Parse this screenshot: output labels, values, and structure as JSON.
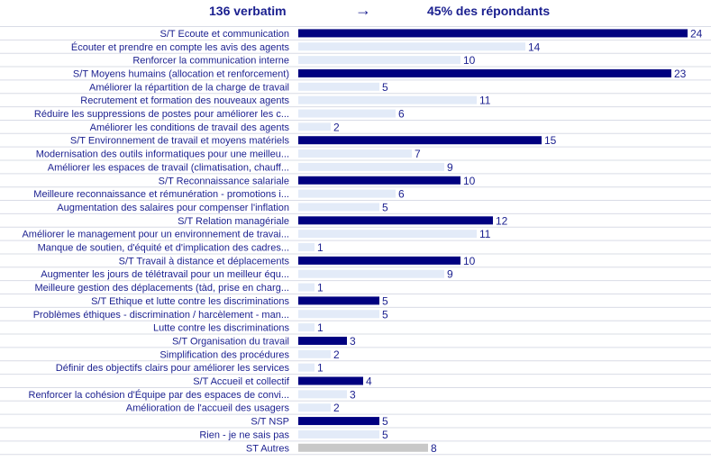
{
  "header": {
    "verbatim": "136 verbatim",
    "arrow": "→",
    "respondents": "45% des répondants"
  },
  "colors": {
    "theme": "#000080",
    "sub": "#e3ebf8",
    "other": "#c8c8c8",
    "text": "#1a1f8f",
    "gridline": "#d9dce6"
  },
  "chart_data": {
    "type": "bar",
    "orientation": "horizontal",
    "xlim": [
      0,
      24
    ],
    "grid": true,
    "categories": [
      {
        "label": "S/T Ecoute et communication",
        "value": 24,
        "kind": "theme"
      },
      {
        "label": "Écouter et prendre en compte les avis des agents",
        "value": 14,
        "kind": "sub"
      },
      {
        "label": "Renforcer la communication interne",
        "value": 10,
        "kind": "sub"
      },
      {
        "label": "S/T Moyens humains (allocation et renforcement)",
        "value": 23,
        "kind": "theme"
      },
      {
        "label": "Améliorer la répartition de la charge de travail",
        "value": 5,
        "kind": "sub"
      },
      {
        "label": "Recrutement et formation des nouveaux agents",
        "value": 11,
        "kind": "sub"
      },
      {
        "label": "Réduire les suppressions de postes pour améliorer les c...",
        "value": 6,
        "kind": "sub"
      },
      {
        "label": "Améliorer les conditions de travail des agents",
        "value": 2,
        "kind": "sub"
      },
      {
        "label": "S/T Environnement de travail et moyens matériels",
        "value": 15,
        "kind": "theme"
      },
      {
        "label": "Modernisation des outils informatiques pour une meilleu...",
        "value": 7,
        "kind": "sub"
      },
      {
        "label": "Améliorer les espaces de travail (climatisation, chauff...",
        "value": 9,
        "kind": "sub"
      },
      {
        "label": "S/T Reconnaissance salariale",
        "value": 10,
        "kind": "theme"
      },
      {
        "label": "Meilleure reconnaissance et rémunération - promotions i...",
        "value": 6,
        "kind": "sub"
      },
      {
        "label": "Augmentation des salaires pour compenser l'inflation",
        "value": 5,
        "kind": "sub"
      },
      {
        "label": "S/T Relation managériale",
        "value": 12,
        "kind": "theme"
      },
      {
        "label": "Améliorer le management pour un environnement de travai...",
        "value": 11,
        "kind": "sub"
      },
      {
        "label": "Manque de soutien, d'équité et d'implication des cadres...",
        "value": 1,
        "kind": "sub"
      },
      {
        "label": "S/T Travail à distance et déplacements",
        "value": 10,
        "kind": "theme"
      },
      {
        "label": "Augmenter les jours de télétravail pour un meilleur équ...",
        "value": 9,
        "kind": "sub"
      },
      {
        "label": "Meilleure gestion des déplacements (tàd, prise en charg...",
        "value": 1,
        "kind": "sub"
      },
      {
        "label": "S/T Ethique et lutte contre les discriminations",
        "value": 5,
        "kind": "theme"
      },
      {
        "label": "Problèmes éthiques - discrimination / harcèlement - man...",
        "value": 5,
        "kind": "sub"
      },
      {
        "label": "Lutte contre les discriminations",
        "value": 1,
        "kind": "sub"
      },
      {
        "label": "S/T Organisation du travail",
        "value": 3,
        "kind": "theme"
      },
      {
        "label": "Simplification des procédures",
        "value": 2,
        "kind": "sub"
      },
      {
        "label": "Définir des objectifs clairs pour améliorer les services",
        "value": 1,
        "kind": "sub"
      },
      {
        "label": "S/T Accueil et collectif",
        "value": 4,
        "kind": "theme"
      },
      {
        "label": "Renforcer la cohésion d'Équipe par des espaces de convi...",
        "value": 3,
        "kind": "sub"
      },
      {
        "label": "Amélioration de l'accueil des usagers",
        "value": 2,
        "kind": "sub"
      },
      {
        "label": "S/T NSP",
        "value": 5,
        "kind": "theme"
      },
      {
        "label": "Rien - je ne sais pas",
        "value": 5,
        "kind": "sub"
      },
      {
        "label": "ST Autres",
        "value": 8,
        "kind": "other"
      }
    ]
  }
}
